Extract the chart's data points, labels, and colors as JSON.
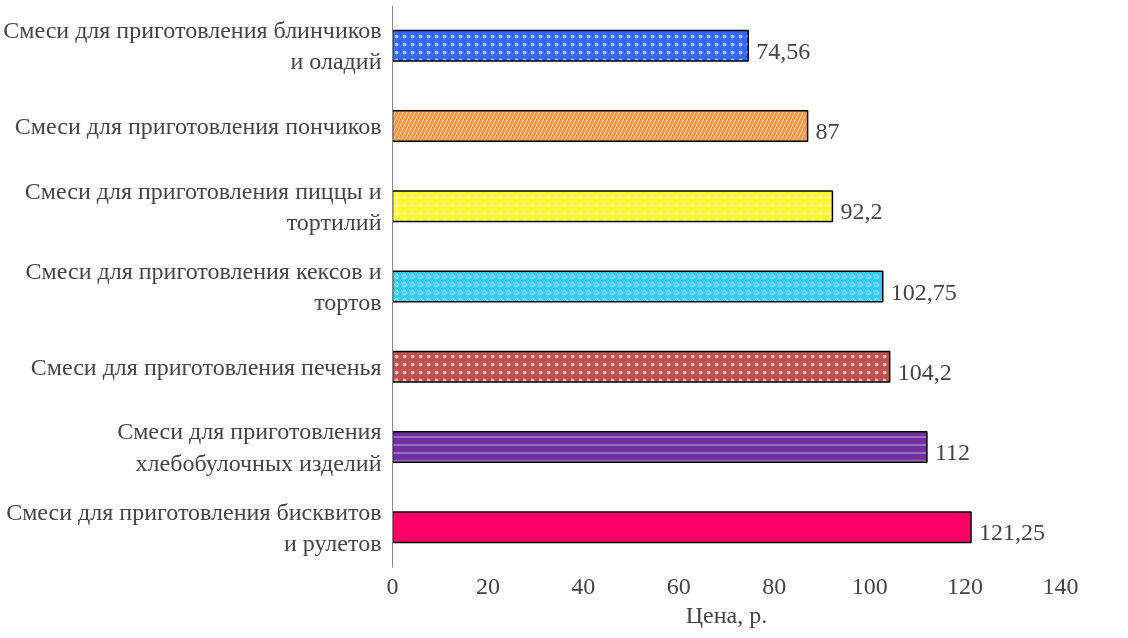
{
  "chart_data": {
    "type": "bar",
    "orientation": "horizontal",
    "xlabel": "Цена, р.",
    "categories": [
      "Смеси для приготовления блинчиков и оладий",
      "Смеси для приготовления пончиков",
      "Смеси для приготовления пиццы и тортилий",
      "Смеси для приготовления кексов и тортов",
      "Смеси для приготовления печенья",
      "Смеси для приготовления хлебобулочных изделий",
      "Смеси для приготовления бисквитов и рулетов"
    ],
    "values": [
      74.56,
      87,
      92.2,
      102.75,
      104.2,
      112,
      121.25
    ],
    "value_labels": [
      "74,56",
      "87",
      "92,2",
      "102,75",
      "104,2",
      "112",
      "121,25"
    ],
    "colors": [
      "#3366ff",
      "#f79646",
      "#ffff00",
      "#33ccff",
      "#c0504d",
      "#7030a0",
      "#ff0066"
    ],
    "xlim": [
      0,
      140
    ],
    "xticks": [
      0,
      20,
      40,
      60,
      80,
      100,
      120,
      140
    ],
    "grid": false
  }
}
